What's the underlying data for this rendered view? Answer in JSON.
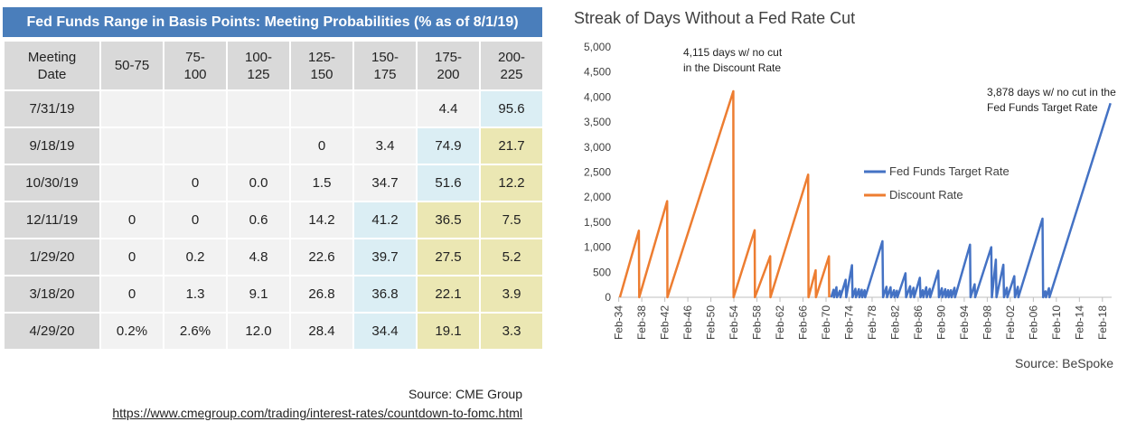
{
  "table": {
    "title": "Fed Funds Range in Basis Points: Meeting Probabilities (% as of 8/1/19)",
    "headers": [
      [
        "Meeting",
        "Date"
      ],
      [
        "50-75",
        ""
      ],
      [
        "75-",
        "100"
      ],
      [
        "100-",
        "125"
      ],
      [
        "125-",
        "150"
      ],
      [
        "150-",
        "175"
      ],
      [
        "175-",
        "200"
      ],
      [
        "200-",
        "225"
      ]
    ],
    "rows": [
      [
        "7/31/19",
        "",
        "",
        "",
        "",
        "",
        "4.4",
        "95.6"
      ],
      [
        "9/18/19",
        "",
        "",
        "",
        "0",
        "3.4",
        "74.9",
        "21.7"
      ],
      [
        "10/30/19",
        "",
        "0",
        "0.0",
        "1.5",
        "34.7",
        "51.6",
        "12.2"
      ],
      [
        "12/11/19",
        "0",
        "0",
        "0.6",
        "14.2",
        "41.2",
        "36.5",
        "7.5"
      ],
      [
        "1/29/20",
        "0",
        "0.2",
        "4.8",
        "22.6",
        "39.7",
        "27.5",
        "5.2"
      ],
      [
        "3/18/20",
        "0",
        "1.3",
        "9.1",
        "26.8",
        "36.8",
        "22.1",
        "3.9"
      ],
      [
        "4/29/20",
        "0.2%",
        "2.6%",
        "12.0",
        "28.4",
        "34.4",
        "19.1",
        "3.3"
      ]
    ],
    "highlight": [
      [
        "",
        "",
        "",
        "",
        "",
        "",
        "",
        "blue"
      ],
      [
        "",
        "",
        "",
        "",
        "",
        "",
        "blue",
        "yellow"
      ],
      [
        "",
        "",
        "",
        "",
        "",
        "",
        "blue",
        "yellow"
      ],
      [
        "",
        "",
        "",
        "",
        "",
        "blue",
        "yellow",
        "yellow"
      ],
      [
        "",
        "",
        "",
        "",
        "",
        "blue",
        "yellow",
        "yellow"
      ],
      [
        "",
        "",
        "",
        "",
        "",
        "blue",
        "yellow",
        "yellow"
      ],
      [
        "",
        "",
        "",
        "",
        "",
        "blue",
        "yellow",
        "yellow"
      ]
    ],
    "colors": {
      "title_bg": "#4a7ebb",
      "header_bg": "#d9d9d9",
      "cell_bg": "#f2f2f2",
      "blue": "#dbeef4",
      "yellow": "#ebe7b3"
    }
  },
  "source_left": "Source: CME Group",
  "source_url": "https://www.cmegroup.com/trading/interest-rates/countdown-to-fomc.html",
  "source_right": "Source: BeSpoke",
  "chart_data": {
    "type": "line",
    "title": "Streak of Days Without a Fed Rate Cut",
    "xlim": [
      1934.0,
      2019.7
    ],
    "ylim": [
      0,
      5000
    ],
    "yticks": [
      0,
      500,
      1000,
      1500,
      2000,
      2500,
      3000,
      3500,
      4000,
      4500,
      5000
    ],
    "ytick_labels": [
      "0",
      "500",
      "1,000",
      "1,500",
      "2,000",
      "2,500",
      "3,000",
      "3,500",
      "4,000",
      "4,500",
      "5,000"
    ],
    "xticks": [
      "Feb-34",
      "Feb-38",
      "Feb-42",
      "Feb-46",
      "Feb-50",
      "Feb-54",
      "Feb-58",
      "Feb-62",
      "Feb-66",
      "Feb-70",
      "Feb-74",
      "Feb-78",
      "Feb-82",
      "Feb-86",
      "Feb-90",
      "Feb-94",
      "Feb-98",
      "Feb-02",
      "Feb-06",
      "Feb-10",
      "Feb-14",
      "Feb-18"
    ],
    "xtick_years": [
      1934.1,
      1938.1,
      1942.1,
      1946.1,
      1950.1,
      1954.1,
      1958.1,
      1962.1,
      1966.1,
      1970.1,
      1974.1,
      1978.1,
      1982.1,
      1986.1,
      1990.1,
      1994.1,
      1998.1,
      2002.1,
      2006.1,
      2010.1,
      2014.1,
      2018.1
    ],
    "legend_position": "center-right",
    "series": [
      {
        "name": "Fed Funds Target Rate",
        "color": "#4472c4",
        "points": [
          [
            1971.0,
            0
          ],
          [
            1971.4,
            150
          ],
          [
            1971.5,
            0
          ],
          [
            1971.9,
            200
          ],
          [
            1972.0,
            0
          ],
          [
            1972.5,
            130
          ],
          [
            1972.6,
            0
          ],
          [
            1973.5,
            350
          ],
          [
            1973.6,
            0
          ],
          [
            1974.6,
            640
          ],
          [
            1974.7,
            0
          ],
          [
            1975.2,
            170
          ],
          [
            1975.3,
            0
          ],
          [
            1975.8,
            160
          ],
          [
            1975.9,
            0
          ],
          [
            1976.3,
            150
          ],
          [
            1976.4,
            0
          ],
          [
            1976.8,
            140
          ],
          [
            1976.9,
            0
          ],
          [
            1979.9,
            1120
          ],
          [
            1980.0,
            0
          ],
          [
            1980.6,
            210
          ],
          [
            1980.7,
            0
          ],
          [
            1981.3,
            200
          ],
          [
            1981.4,
            0
          ],
          [
            1981.9,
            140
          ],
          [
            1982.0,
            0
          ],
          [
            1982.4,
            130
          ],
          [
            1982.5,
            0
          ],
          [
            1983.9,
            480
          ],
          [
            1984.0,
            0
          ],
          [
            1984.7,
            220
          ],
          [
            1984.8,
            0
          ],
          [
            1985.3,
            190
          ],
          [
            1985.4,
            0
          ],
          [
            1986.4,
            390
          ],
          [
            1986.5,
            0
          ],
          [
            1986.9,
            140
          ],
          [
            1987.0,
            0
          ],
          [
            1987.5,
            200
          ],
          [
            1987.6,
            0
          ],
          [
            1988.1,
            170
          ],
          [
            1988.2,
            0
          ],
          [
            1989.6,
            530
          ],
          [
            1989.7,
            0
          ],
          [
            1990.2,
            180
          ],
          [
            1990.3,
            0
          ],
          [
            1990.8,
            160
          ],
          [
            1990.9,
            0
          ],
          [
            1991.3,
            140
          ],
          [
            1991.4,
            0
          ],
          [
            1991.8,
            140
          ],
          [
            1991.9,
            0
          ],
          [
            1992.4,
            190
          ],
          [
            1992.5,
            0
          ],
          [
            1995.1,
            1050
          ],
          [
            1995.2,
            0
          ],
          [
            1995.9,
            260
          ],
          [
            1996.0,
            0
          ],
          [
            1998.8,
            1000
          ],
          [
            1998.9,
            0
          ],
          [
            1999.6,
            750
          ],
          [
            1999.7,
            0
          ],
          [
            2000.9,
            650
          ],
          [
            2001.0,
            0
          ],
          [
            2001.5,
            190
          ],
          [
            2001.6,
            0
          ],
          [
            2002.8,
            420
          ],
          [
            2002.9,
            0
          ],
          [
            2003.4,
            210
          ],
          [
            2003.5,
            0
          ],
          [
            2007.7,
            1570
          ],
          [
            2007.8,
            0
          ],
          [
            2008.2,
            120
          ],
          [
            2008.3,
            0
          ],
          [
            2008.8,
            180
          ],
          [
            2008.9,
            0
          ],
          [
            2019.5,
            3878
          ]
        ]
      },
      {
        "name": "Discount Rate",
        "color": "#ed7d31",
        "points": [
          [
            1934.3,
            0
          ],
          [
            1937.6,
            1330
          ],
          [
            1937.65,
            0
          ],
          [
            1942.5,
            1920
          ],
          [
            1942.55,
            0
          ],
          [
            1954.0,
            4115
          ],
          [
            1954.05,
            0
          ],
          [
            1957.7,
            1340
          ],
          [
            1957.75,
            0
          ],
          [
            1960.4,
            820
          ],
          [
            1960.45,
            0
          ],
          [
            1967.0,
            2450
          ],
          [
            1967.05,
            0
          ],
          [
            1968.3,
            540
          ],
          [
            1968.35,
            0
          ],
          [
            1970.6,
            820
          ],
          [
            1970.65,
            0
          ]
        ]
      }
    ],
    "annotations": [
      {
        "lines": [
          "4,115 days w/ no cut",
          "in the Discount Rate"
        ]
      },
      {
        "lines": [
          "3,878 days w/ no cut in the",
          "Fed Funds Target Rate"
        ]
      }
    ]
  }
}
